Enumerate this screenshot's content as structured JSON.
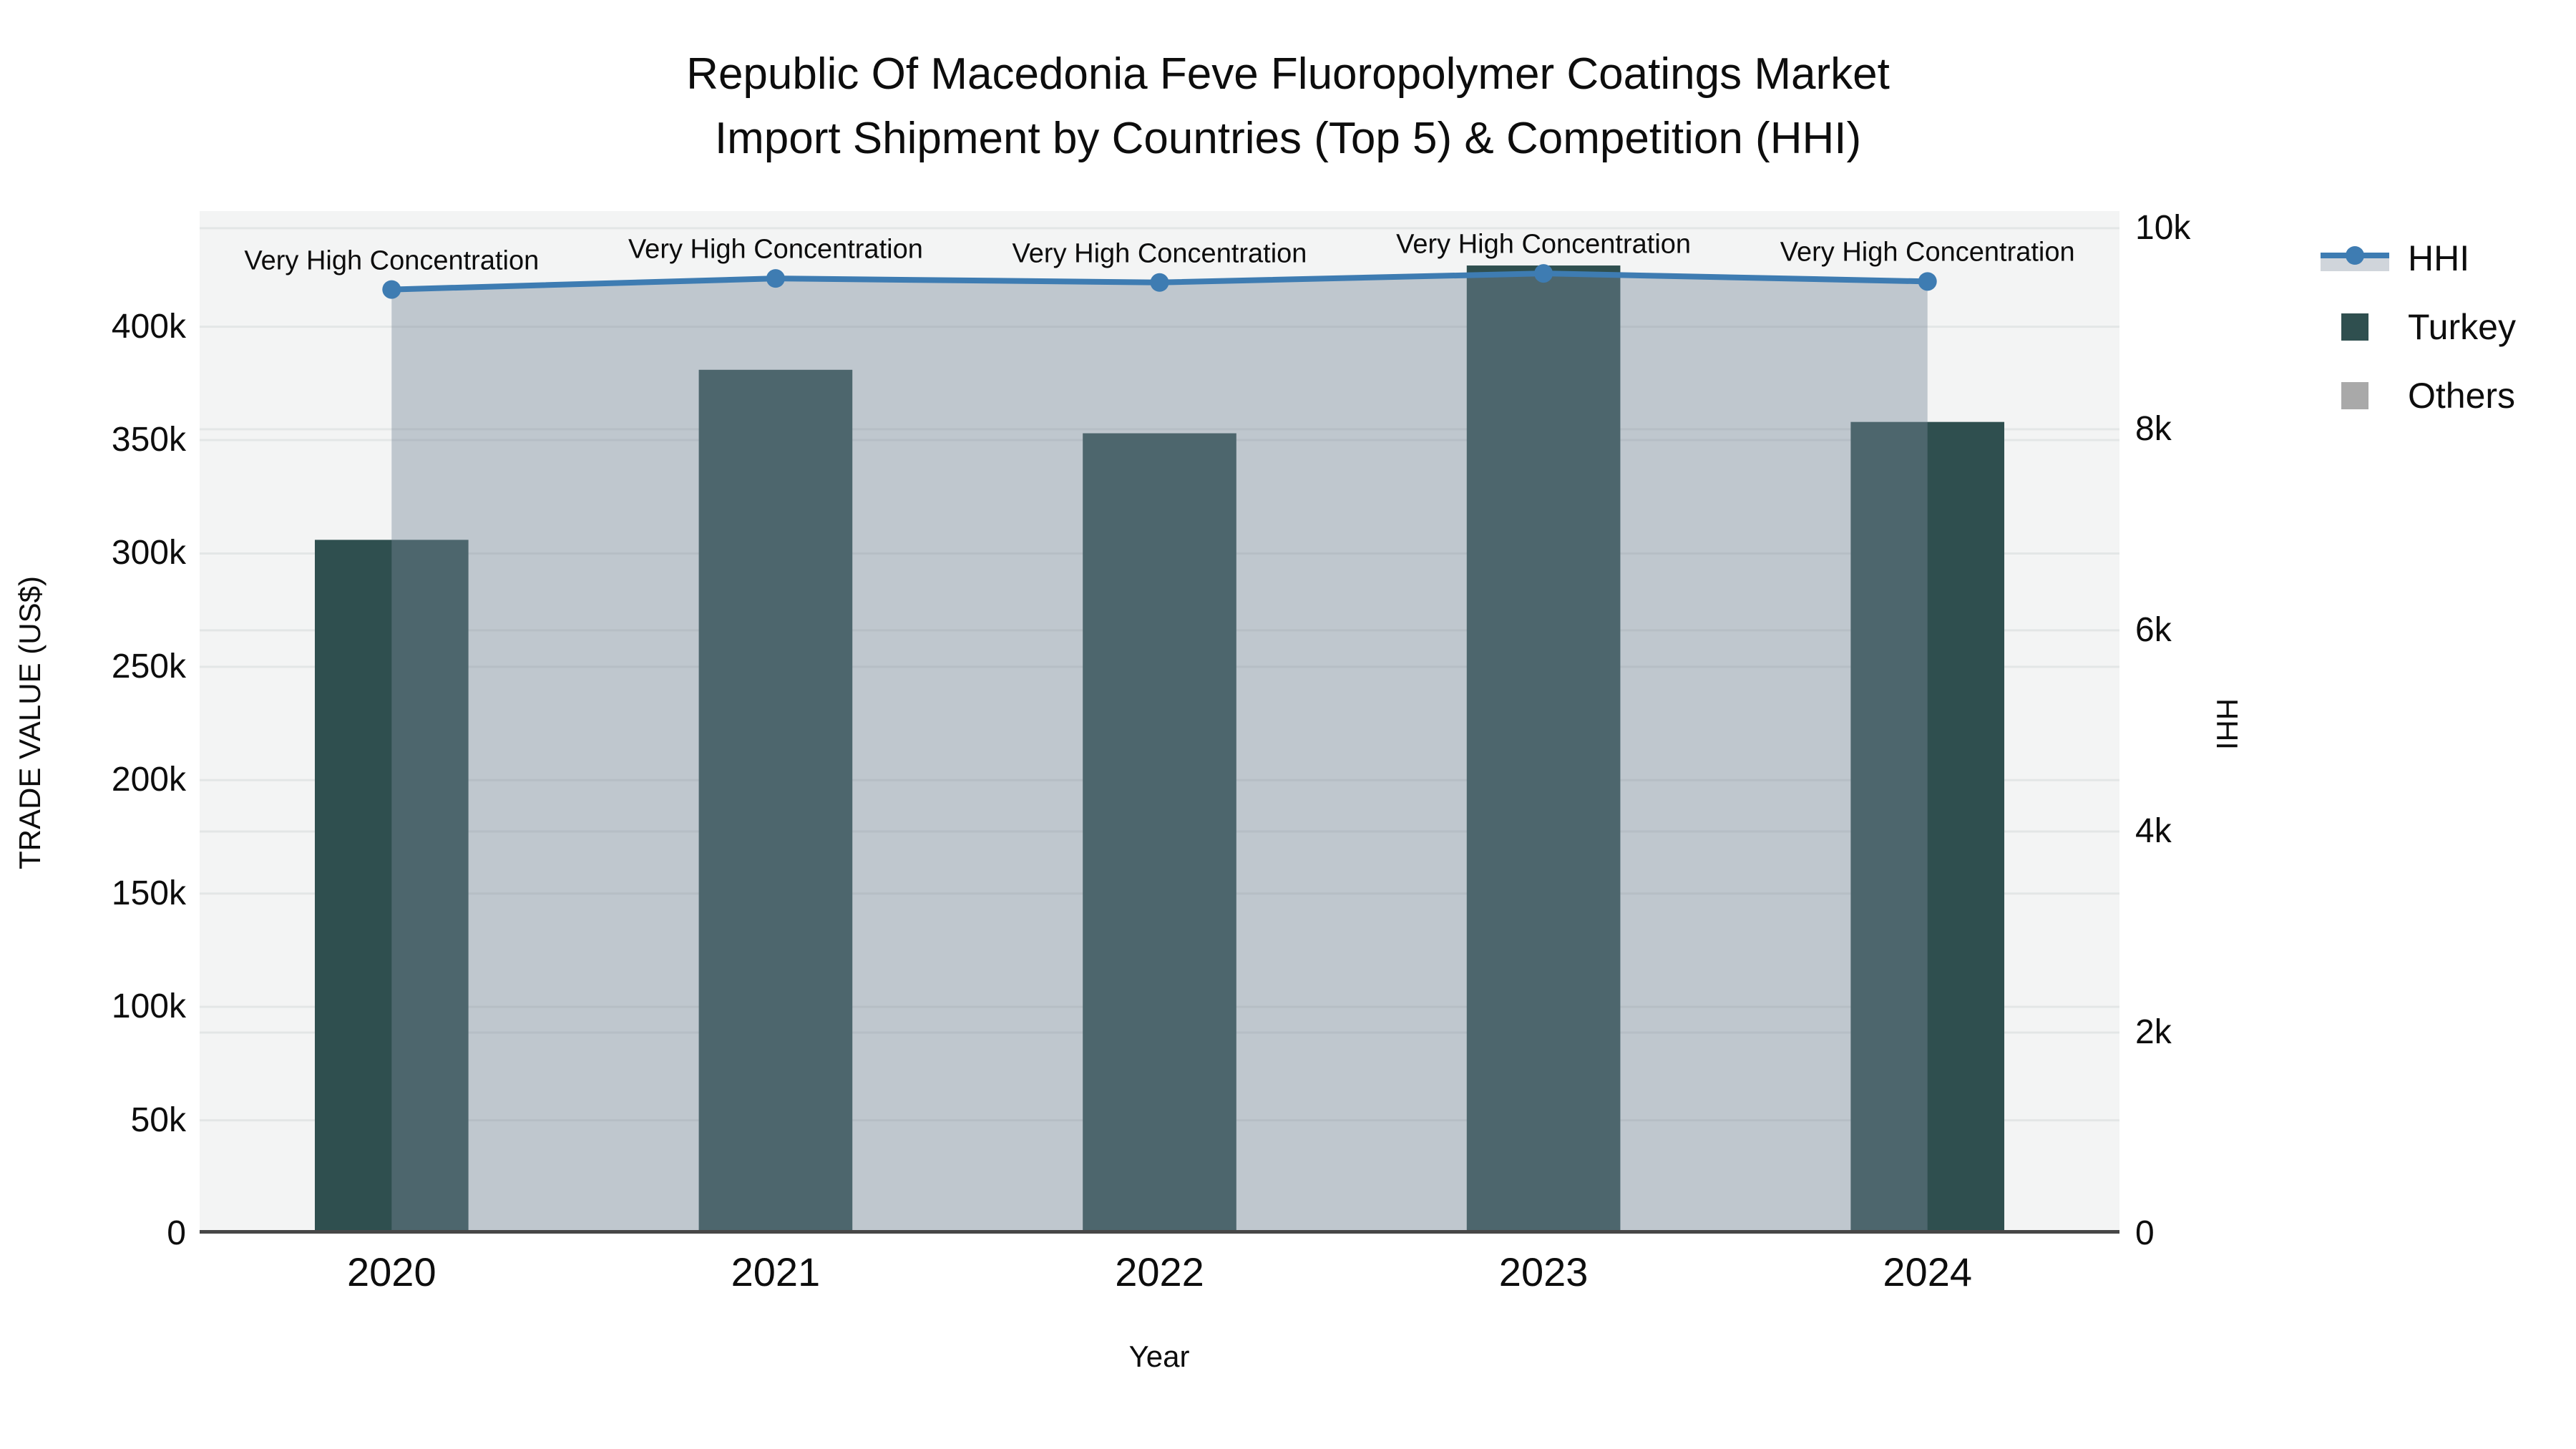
{
  "title": {
    "line1": "Republic Of Macedonia Feve Fluoropolymer Coatings Market",
    "line2": "Import Shipment by Countries (Top 5) & Competition (HHI)"
  },
  "axes": {
    "left": {
      "title": "TRADE VALUE (US$)",
      "tick_values": [
        0,
        50000,
        100000,
        150000,
        200000,
        250000,
        300000,
        350000,
        400000
      ],
      "tick_labels": [
        "0",
        "50k",
        "100k",
        "150k",
        "200k",
        "250k",
        "300k",
        "350k",
        "400k"
      ],
      "range": [
        0,
        451000
      ]
    },
    "right": {
      "title": "HHI",
      "tick_values": [
        0,
        2000,
        4000,
        6000,
        8000,
        10000
      ],
      "tick_labels": [
        "0",
        "2k",
        "4k",
        "6k",
        "8k",
        "10k"
      ],
      "range": [
        0,
        10170
      ]
    },
    "x": {
      "title": "Year",
      "categories": [
        "2020",
        "2021",
        "2022",
        "2023",
        "2024"
      ]
    }
  },
  "legend": {
    "items": [
      {
        "label": "HHI"
      },
      {
        "label": "Turkey"
      },
      {
        "label": "Others"
      }
    ]
  },
  "annotations": {
    "text": "Very High Concentration"
  },
  "colors": {
    "turkey_bar": "#2F4F4F",
    "others": "#A9A9A9",
    "hhi_line": "#3E7CB2",
    "hhi_area_fill": "rgba(119,136,153,0.42)",
    "plot_background": "#f3f4f4",
    "gridline": "#e3e6e6",
    "axis_line": "#474747"
  },
  "chart_data": {
    "type": "bar",
    "categories": [
      "2020",
      "2021",
      "2022",
      "2023",
      "2024"
    ],
    "series": [
      {
        "name": "Turkey",
        "type": "bar",
        "yaxis": "left",
        "values": [
          306000,
          381000,
          353000,
          427000,
          358000
        ]
      },
      {
        "name": "Others",
        "type": "bar",
        "yaxis": "left",
        "values": [
          0,
          0,
          0,
          0,
          0
        ]
      },
      {
        "name": "HHI",
        "type": "line",
        "yaxis": "right",
        "area_fill": true,
        "values": [
          9390,
          9500,
          9460,
          9550,
          9470
        ]
      }
    ],
    "title": "Republic Of Macedonia Feve Fluoropolymer Coatings Market Import Shipment by Countries (Top 5) & Competition (HHI)",
    "xlabel": "Year",
    "ylabel": "TRADE VALUE (US$)",
    "ylabel_right": "HHI",
    "ylim_left": [
      0,
      451000
    ],
    "ylim_right": [
      0,
      10170
    ],
    "grid": true,
    "legend_position": "right",
    "annotation_per_category": "Very High Concentration"
  }
}
